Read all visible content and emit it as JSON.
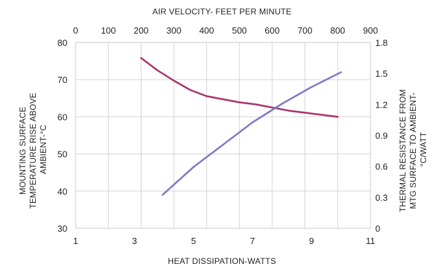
{
  "chart_data": {
    "type": "line",
    "top_axis": {
      "label": "AIR VELOCITY- FEET PER MINUTE",
      "ticks": [
        "0",
        "100",
        "200",
        "300",
        "400",
        "500",
        "600",
        "700",
        "800",
        "900"
      ],
      "range": [
        0,
        900
      ]
    },
    "bottom_axis": {
      "label": "HEAT DISSIPATION-WATTS",
      "ticks": [
        "1",
        "3",
        "5",
        "7",
        "9",
        "11"
      ],
      "range": [
        1,
        11
      ]
    },
    "left_axis": {
      "label_lines": [
        "MOUNTING SURFACE",
        "TEMPERATURE RISE ABOVE",
        "AMBIENT-°C"
      ],
      "ticks": [
        "30",
        "40",
        "50",
        "60",
        "70",
        "80"
      ],
      "range": [
        30,
        80
      ]
    },
    "right_axis": {
      "label_lines": [
        "THERMAL RESISTANCE FROM",
        "MTG SURFACE TO AMBIENT-",
        "°C/WATT"
      ],
      "ticks": [
        "0",
        "0.3",
        "0.6",
        "0.9",
        "1.2",
        "1.5",
        "1.8"
      ],
      "range": [
        0,
        1.8
      ]
    },
    "grid": true,
    "series": [
      {
        "axes": "top-right",
        "color": "#a8346e",
        "x": [
          200,
          250,
          300,
          350,
          400,
          450,
          500,
          550,
          600,
          650,
          700,
          750,
          800
        ],
        "y": [
          1.65,
          1.53,
          1.43,
          1.34,
          1.28,
          1.25,
          1.22,
          1.2,
          1.17,
          1.14,
          1.12,
          1.1,
          1.08
        ]
      },
      {
        "axes": "bottom-left",
        "color": "#7b79c6",
        "x": [
          3.95,
          5.0,
          6.0,
          7.0,
          8.0,
          9.0,
          10.0
        ],
        "y": [
          39,
          46.5,
          52.5,
          58.5,
          63.5,
          68,
          72
        ]
      }
    ]
  }
}
